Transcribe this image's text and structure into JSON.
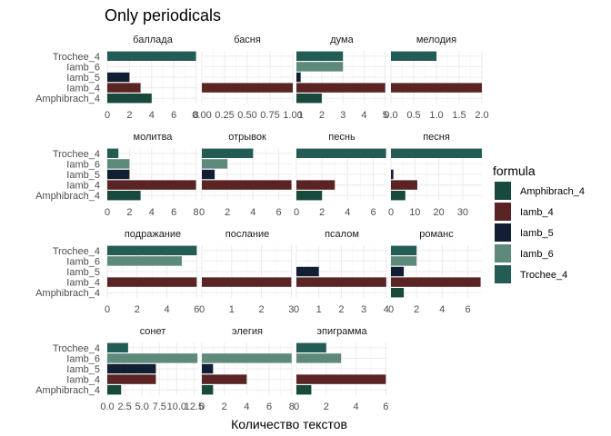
{
  "chart_data": {
    "type": "bar",
    "orientation": "horizontal",
    "title": "Only periodicals",
    "xlabel": "Количество текстов",
    "ylabel": "",
    "grid": true,
    "legend_position": "right",
    "legend_title": "formula",
    "categories": [
      "Amphibrach_4",
      "Iamb_4",
      "Iamb_5",
      "Iamb_6",
      "Trochee_4"
    ],
    "colors": {
      "Amphibrach_4": "#174a3c",
      "Iamb_4": "#5a2424",
      "Iamb_5": "#111e33",
      "Iamb_6": "#5e8a7c",
      "Trochee_4": "#235c55"
    },
    "facets": [
      {
        "name": "баллада",
        "xlim": [
          0,
          8.2
        ],
        "ticks": [
          0,
          2,
          4,
          6,
          8
        ],
        "tick_labels": [
          "0",
          "2",
          "4",
          "6",
          "8"
        ],
        "values": {
          "Trochee_4": 8,
          "Iamb_6": 0,
          "Iamb_5": 2,
          "Iamb_4": 3,
          "Amphibrach_4": 4
        }
      },
      {
        "name": "басня",
        "xlim": [
          0,
          1
        ],
        "ticks": [
          0,
          0.25,
          0.5,
          0.75,
          1
        ],
        "tick_labels": [
          "0.00",
          "0.25",
          "0.50",
          "0.75",
          "1.00"
        ],
        "values": {
          "Trochee_4": 0,
          "Iamb_6": 0,
          "Iamb_5": 0,
          "Iamb_4": 1,
          "Amphibrach_4": 0
        }
      },
      {
        "name": "дума",
        "xlim": [
          0.8,
          5.1
        ],
        "ticks": [
          1,
          2,
          3,
          4,
          5
        ],
        "tick_labels": [
          "1",
          "2",
          "3",
          "4",
          "5"
        ],
        "values": {
          "Trochee_4": 3,
          "Iamb_6": 3,
          "Iamb_5": 1,
          "Iamb_4": 5,
          "Amphibrach_4": 2
        }
      },
      {
        "name": "мелодия",
        "xlim": [
          0,
          2
        ],
        "ticks": [
          0,
          0.5,
          1,
          1.5,
          2
        ],
        "tick_labels": [
          "0.0",
          "0.5",
          "1.0",
          "1.5",
          "2.0"
        ],
        "values": {
          "Trochee_4": 1,
          "Iamb_6": 0,
          "Iamb_5": 0,
          "Iamb_4": 2,
          "Amphibrach_4": 0
        }
      },
      {
        "name": "молитва",
        "xlim": [
          0,
          8.2
        ],
        "ticks": [
          0,
          2,
          4,
          6,
          8
        ],
        "tick_labels": [
          "0",
          "2",
          "4",
          "6",
          "8"
        ],
        "values": {
          "Trochee_4": 1,
          "Iamb_6": 2,
          "Iamb_5": 2,
          "Iamb_4": 8,
          "Amphibrach_4": 3
        }
      },
      {
        "name": "отрывок",
        "xlim": [
          0,
          7.1
        ],
        "ticks": [
          0,
          2,
          4,
          6
        ],
        "tick_labels": [
          "0",
          "2",
          "4",
          "6"
        ],
        "values": {
          "Trochee_4": 4,
          "Iamb_6": 2,
          "Iamb_5": 1,
          "Iamb_4": 7,
          "Amphibrach_4": 0
        }
      },
      {
        "name": "песнь",
        "xlim": [
          0,
          7.1
        ],
        "ticks": [
          0,
          2,
          4,
          6
        ],
        "tick_labels": [
          "0",
          "2",
          "4",
          "6"
        ],
        "values": {
          "Trochee_4": 7,
          "Iamb_6": 0,
          "Iamb_5": 0,
          "Iamb_4": 3,
          "Amphibrach_4": 2
        }
      },
      {
        "name": "песня",
        "xlim": [
          0,
          38
        ],
        "ticks": [
          0,
          10,
          20,
          30
        ],
        "tick_labels": [
          "0",
          "10",
          "20",
          "30"
        ],
        "values": {
          "Trochee_4": 38,
          "Iamb_6": 0,
          "Iamb_5": 1,
          "Iamb_4": 11,
          "Amphibrach_4": 6
        }
      },
      {
        "name": "подражание",
        "xlim": [
          0,
          6.1
        ],
        "ticks": [
          0,
          2,
          4,
          6
        ],
        "tick_labels": [
          "0",
          "2",
          "4",
          "6"
        ],
        "values": {
          "Trochee_4": 6,
          "Iamb_6": 5,
          "Iamb_5": 0,
          "Iamb_4": 6,
          "Amphibrach_4": 0
        }
      },
      {
        "name": "послание",
        "xlim": [
          0,
          3.05
        ],
        "ticks": [
          0,
          1,
          2,
          3
        ],
        "tick_labels": [
          "0",
          "1",
          "2",
          "3"
        ],
        "values": {
          "Trochee_4": 0,
          "Iamb_6": 0,
          "Iamb_5": 0,
          "Iamb_4": 3,
          "Amphibrach_4": 0
        }
      },
      {
        "name": "псалом",
        "xlim": [
          0,
          4.05
        ],
        "ticks": [
          0,
          1,
          2,
          3,
          4
        ],
        "tick_labels": [
          "0",
          "1",
          "2",
          "3",
          "4"
        ],
        "values": {
          "Trochee_4": 0,
          "Iamb_6": 0,
          "Iamb_5": 1,
          "Iamb_4": 4,
          "Amphibrach_4": 0
        }
      },
      {
        "name": "романс",
        "xlim": [
          0,
          7.1
        ],
        "ticks": [
          0,
          2,
          4,
          6
        ],
        "tick_labels": [
          "0",
          "2",
          "4",
          "6"
        ],
        "values": {
          "Trochee_4": 2,
          "Iamb_6": 2,
          "Iamb_5": 1,
          "Iamb_4": 7,
          "Amphibrach_4": 1
        }
      },
      {
        "name": "сонет",
        "xlim": [
          0,
          13.1
        ],
        "ticks": [
          0,
          2.5,
          5,
          7.5,
          10,
          12.5
        ],
        "tick_labels": [
          "0.0",
          "2.5",
          "5.0",
          "7.5",
          "10.0",
          "12.5"
        ],
        "values": {
          "Trochee_4": 3,
          "Iamb_6": 13,
          "Iamb_5": 7,
          "Iamb_4": 7,
          "Amphibrach_4": 2
        }
      },
      {
        "name": "элегия",
        "xlim": [
          0,
          8.1
        ],
        "ticks": [
          0,
          2,
          4,
          6,
          8
        ],
        "tick_labels": [
          "0",
          "2",
          "4",
          "6",
          "8"
        ],
        "values": {
          "Trochee_4": 0,
          "Iamb_6": 8,
          "Iamb_5": 1,
          "Iamb_4": 4,
          "Amphibrach_4": 1
        }
      },
      {
        "name": "эпиграмма",
        "xlim": [
          0,
          6.1
        ],
        "ticks": [
          0,
          2,
          4,
          6
        ],
        "tick_labels": [
          "0",
          "2",
          "4",
          "6"
        ],
        "values": {
          "Trochee_4": 2,
          "Iamb_6": 3,
          "Iamb_5": 0,
          "Iamb_4": 6,
          "Amphibrach_4": 1
        }
      }
    ]
  }
}
